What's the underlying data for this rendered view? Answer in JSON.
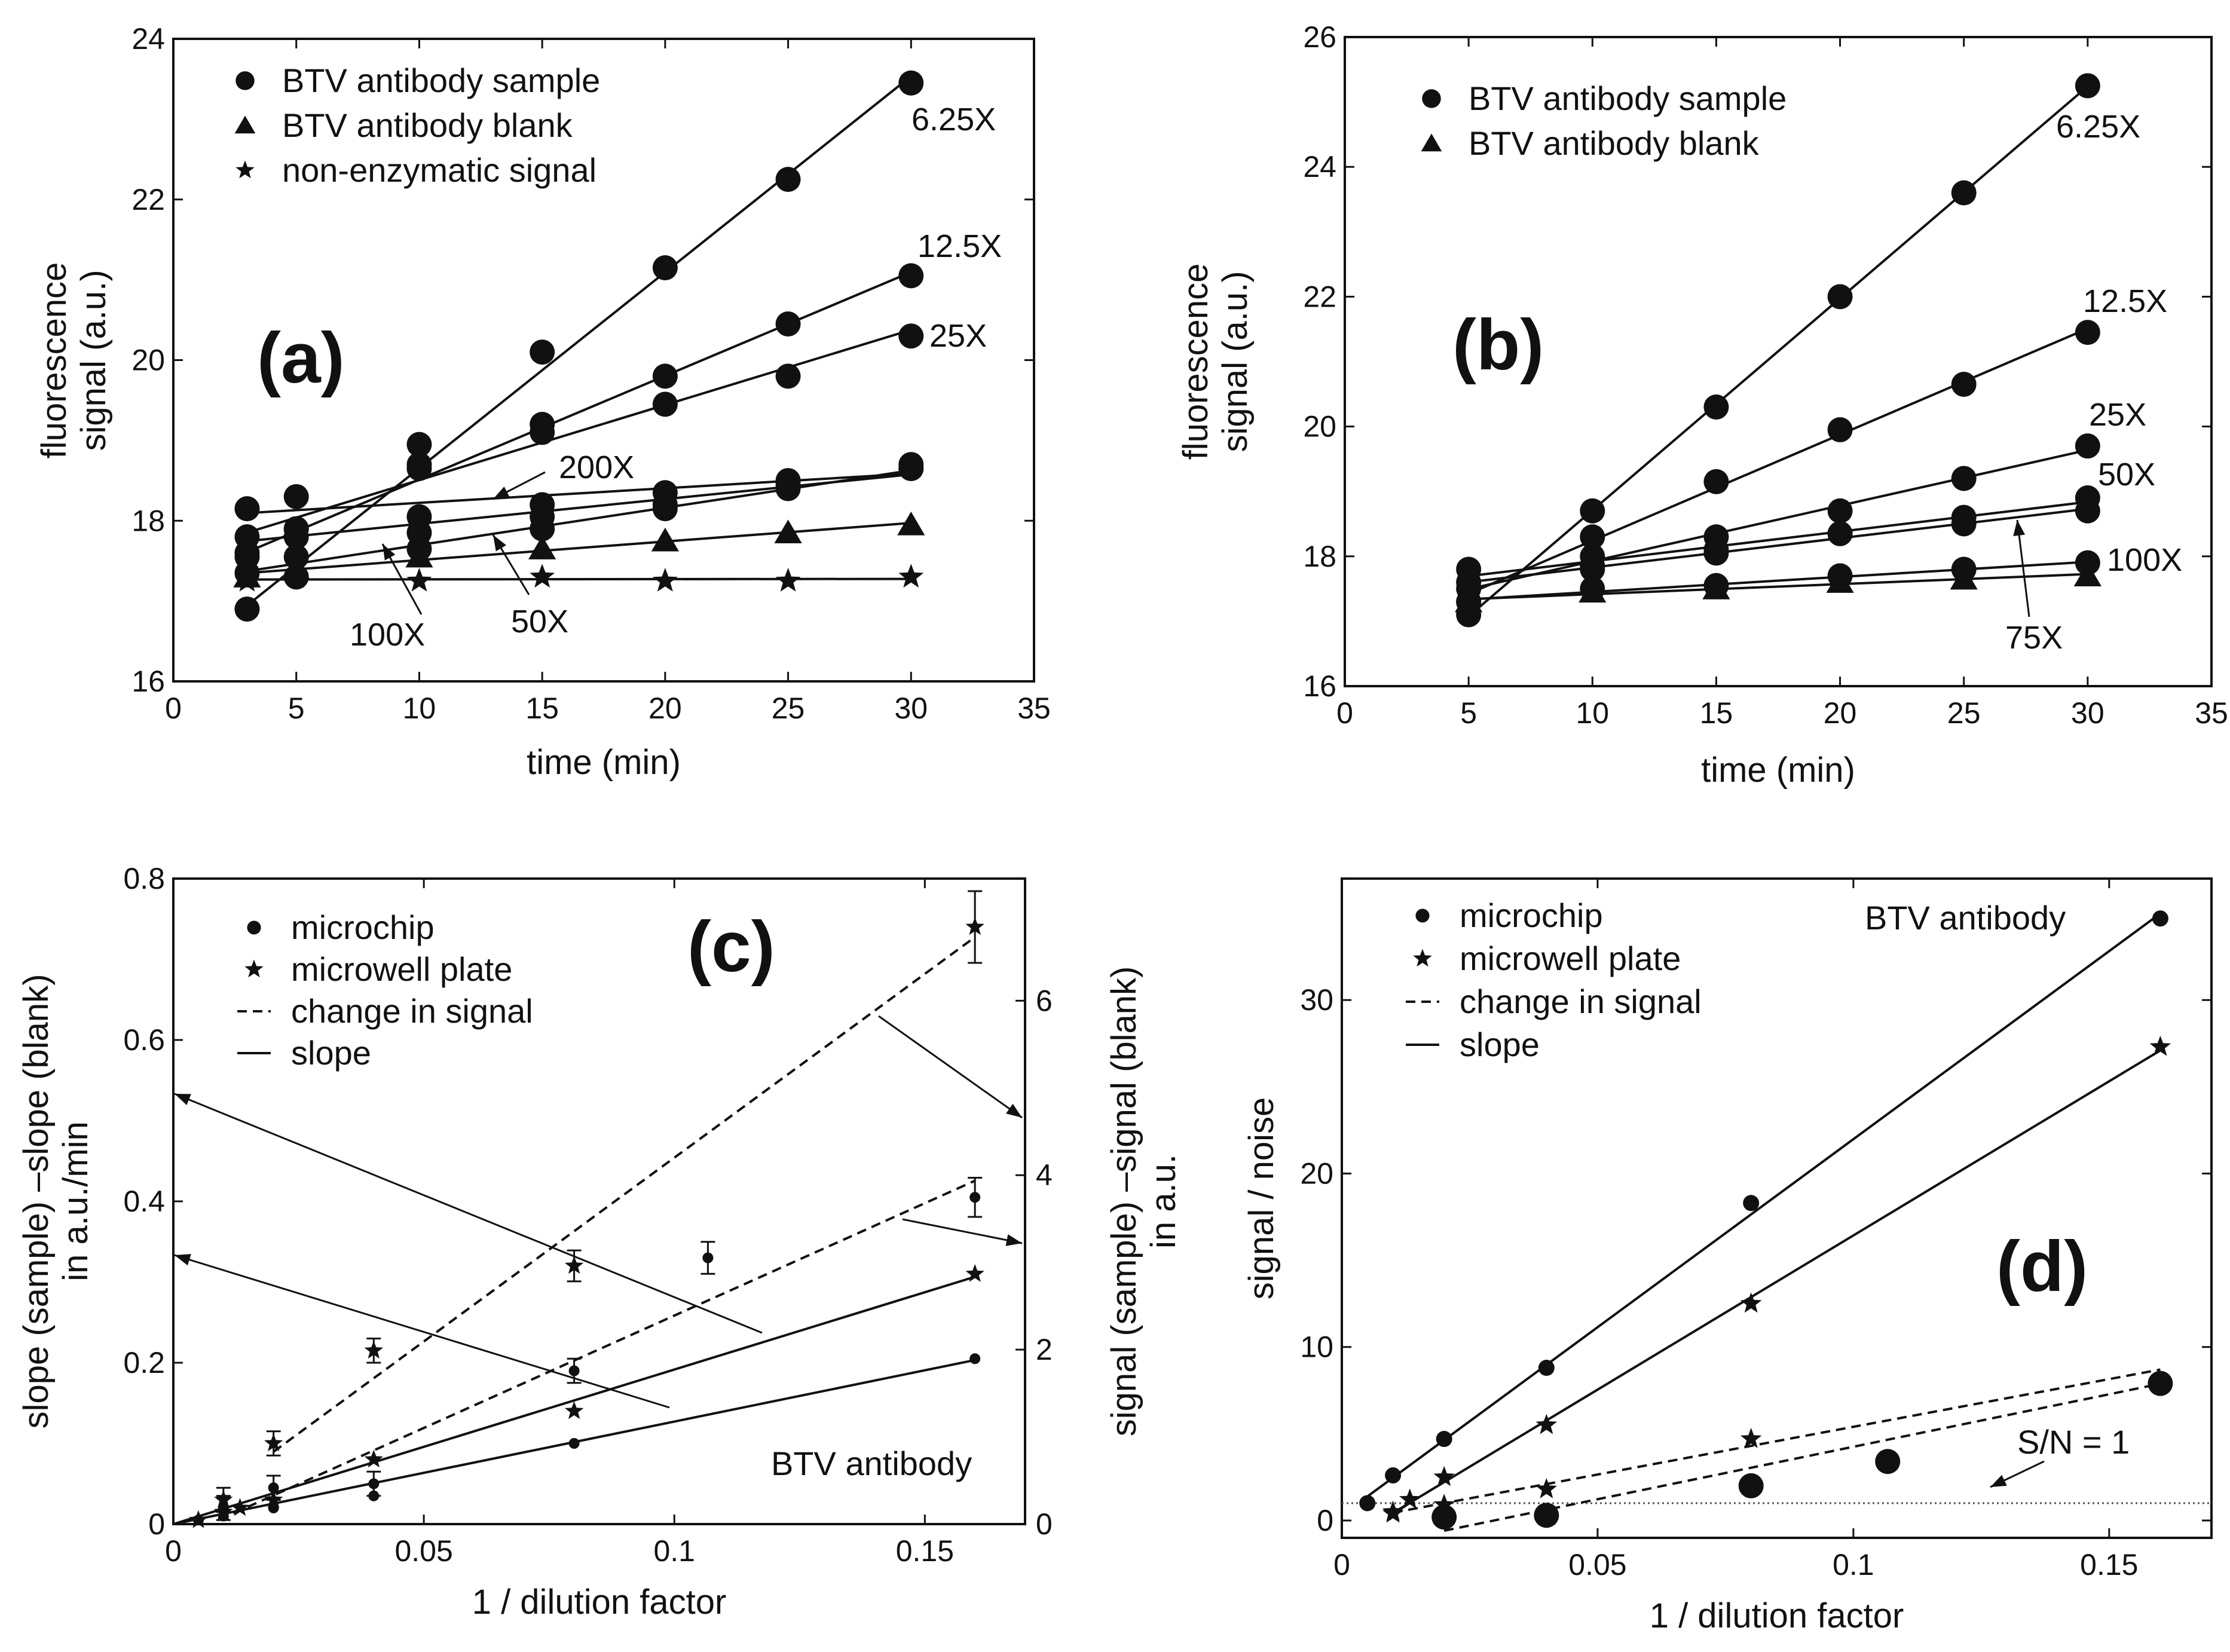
{
  "chart_data": [
    {
      "id": "a",
      "type": "scatter",
      "panel_label": "(a)",
      "xlabel": "time (min)",
      "ylabel": "fluorescence signal (a.u.)",
      "xlim": [
        0,
        35
      ],
      "ylim": [
        16,
        24
      ],
      "xticks": [
        0,
        5,
        10,
        15,
        20,
        25,
        30,
        35
      ],
      "yticks": [
        16,
        18,
        20,
        22,
        24
      ],
      "legend": [
        {
          "marker": "circle",
          "label": "BTV antibody sample"
        },
        {
          "marker": "triangle",
          "label": "BTV antibody blank"
        },
        {
          "marker": "star",
          "label": "non-enzymatic signal"
        }
      ],
      "series": [
        {
          "name": "6.25X",
          "marker": "circle",
          "x": [
            3,
            5,
            10,
            15,
            20,
            25,
            30
          ],
          "y": [
            16.9,
            17.3,
            18.7,
            20.1,
            21.15,
            22.25,
            23.45
          ]
        },
        {
          "name": "12.5X",
          "marker": "circle",
          "x": [
            3,
            5,
            10,
            15,
            20,
            25,
            30
          ],
          "y": [
            17.55,
            17.8,
            18.65,
            19.2,
            19.8,
            20.45,
            21.05
          ]
        },
        {
          "name": "25X",
          "marker": "circle",
          "x": [
            3,
            5,
            10,
            15,
            20,
            25,
            30
          ],
          "y": [
            17.6,
            17.9,
            18.95,
            19.1,
            19.45,
            19.8,
            20.3
          ]
        },
        {
          "name": "200X",
          "marker": "circle",
          "x": [
            3,
            5,
            10,
            15,
            20,
            25,
            30
          ],
          "y": [
            18.15,
            18.3,
            18.05,
            18.2,
            18.35,
            18.5,
            18.7
          ]
        },
        {
          "name": "100X",
          "marker": "circle",
          "x": [
            3,
            5,
            10,
            15,
            20,
            25,
            30
          ],
          "y": [
            17.8,
            17.9,
            17.85,
            18.05,
            18.2,
            18.45,
            18.65
          ]
        },
        {
          "name": "50X",
          "marker": "circle",
          "x": [
            3,
            5,
            10,
            15,
            20,
            25,
            30
          ],
          "y": [
            17.35,
            17.55,
            17.65,
            17.9,
            18.15,
            18.4,
            18.65
          ]
        },
        {
          "name": "blank",
          "marker": "triangle",
          "x": [
            3,
            5,
            10,
            15,
            20,
            25,
            30
          ],
          "y": [
            17.3,
            17.4,
            17.55,
            17.65,
            17.75,
            17.85,
            17.95
          ]
        },
        {
          "name": "non-enzymatic",
          "marker": "star",
          "x": [
            3,
            5,
            10,
            15,
            20,
            25,
            30
          ],
          "y": [
            17.25,
            17.3,
            17.25,
            17.3,
            17.25,
            17.25,
            17.3
          ]
        }
      ],
      "annotations": [
        "6.25X",
        "12.5X",
        "25X",
        "200X",
        "100X",
        "50X"
      ]
    },
    {
      "id": "b",
      "type": "scatter",
      "panel_label": "(b)",
      "xlabel": "time (min)",
      "ylabel": "fluorescence signal (a.u.)",
      "xlim": [
        0,
        35
      ],
      "ylim": [
        16,
        26
      ],
      "xticks": [
        0,
        5,
        10,
        15,
        20,
        25,
        30,
        35
      ],
      "yticks": [
        16,
        18,
        20,
        22,
        24,
        26
      ],
      "legend": [
        {
          "marker": "circle",
          "label": "BTV antibody sample"
        },
        {
          "marker": "triangle",
          "label": "BTV antibody blank"
        }
      ],
      "series": [
        {
          "name": "6.25X",
          "marker": "circle",
          "x": [
            5,
            10,
            15,
            20,
            25,
            30
          ],
          "y": [
            17.1,
            18.7,
            20.3,
            22.0,
            23.6,
            25.25
          ]
        },
        {
          "name": "12.5X",
          "marker": "circle",
          "x": [
            5,
            10,
            15,
            20,
            25,
            30
          ],
          "y": [
            17.3,
            18.3,
            19.15,
            19.95,
            20.65,
            21.45
          ]
        },
        {
          "name": "25X",
          "marker": "circle",
          "x": [
            5,
            10,
            15,
            20,
            25,
            30
          ],
          "y": [
            17.5,
            18.0,
            18.3,
            18.7,
            19.2,
            19.7
          ]
        },
        {
          "name": "50X",
          "marker": "circle",
          "x": [
            5,
            10,
            15,
            20,
            25,
            30
          ],
          "y": [
            17.8,
            17.85,
            18.1,
            18.35,
            18.6,
            18.9
          ]
        },
        {
          "name": "75X",
          "marker": "circle",
          "x": [
            5,
            10,
            15,
            20,
            25,
            30
          ],
          "y": [
            17.6,
            17.8,
            18.05,
            18.35,
            18.5,
            18.7
          ]
        },
        {
          "name": "100X",
          "marker": "circle",
          "x": [
            5,
            10,
            15,
            20,
            25,
            30
          ],
          "y": [
            17.3,
            17.5,
            17.55,
            17.7,
            17.8,
            17.9
          ]
        },
        {
          "name": "blank",
          "marker": "triangle",
          "x": [
            5,
            10,
            15,
            20,
            25,
            30
          ],
          "y": [
            17.3,
            17.45,
            17.5,
            17.6,
            17.65,
            17.7
          ]
        }
      ],
      "annotations": [
        "6.25X",
        "12.5X",
        "25X",
        "50X",
        "100X",
        "75X"
      ]
    },
    {
      "id": "c",
      "type": "scatter",
      "panel_label": "(c)",
      "xlabel": "1 / dilution factor",
      "ylabel": "slope (sample) –slope (blank) in a.u./min",
      "y2label": "signal (sample) –signal (blank) in a.u.",
      "xlim": [
        0,
        0.17
      ],
      "ylim": [
        0,
        0.8
      ],
      "y2lim": [
        0,
        7.4
      ],
      "xticks": [
        0,
        0.05,
        0.1,
        0.15
      ],
      "yticks": [
        0,
        0.2,
        0.4,
        0.6,
        0.8
      ],
      "y2ticks": [
        0,
        2,
        4,
        6
      ],
      "text": "BTV antibody",
      "legend": [
        {
          "marker": "dot",
          "label": "microchip"
        },
        {
          "marker": "star",
          "label": "microwell plate"
        },
        {
          "marker": "dashed",
          "label": "change in signal"
        },
        {
          "marker": "solid",
          "label": "slope"
        }
      ],
      "series": [
        {
          "name": "microchip slope",
          "marker": "dot",
          "x": [
            0.005,
            0.01,
            0.02,
            0.04,
            0.08,
            0.16
          ],
          "y": [
            0.005,
            0.01,
            0.02,
            0.035,
            0.1,
            0.205
          ]
        },
        {
          "name": "microwell plate slope",
          "marker": "star",
          "x": [
            0.005,
            0.01,
            0.0133,
            0.02,
            0.04,
            0.08,
            0.16
          ],
          "y": [
            0.005,
            0.015,
            0.02,
            0.03,
            0.08,
            0.14,
            0.31
          ]
        },
        {
          "name": "microchip change in signal",
          "marker": "dot",
          "x": [
            0.01,
            0.02,
            0.04,
            0.08,
            0.1067,
            0.16
          ],
          "y": [
            0.02,
            0.045,
            0.05,
            0.19,
            0.33,
            0.405
          ]
        },
        {
          "name": "microwell plate change in signal",
          "marker": "star",
          "x": [
            0.01,
            0.02,
            0.04,
            0.08,
            0.16
          ],
          "y": [
            0.03,
            0.1,
            0.215,
            0.32,
            0.74
          ]
        }
      ]
    },
    {
      "id": "d",
      "type": "scatter",
      "panel_label": "(d)",
      "xlabel": "1 / dilution factor",
      "ylabel": "signal / noise",
      "xlim": [
        0,
        0.17
      ],
      "ylim": [
        -1,
        37
      ],
      "xticks": [
        0,
        0.05,
        0.1,
        0.15
      ],
      "yticks": [
        0,
        10,
        20,
        30
      ],
      "text": "BTV antibody",
      "threshold_label": "S/N = 1",
      "legend": [
        {
          "marker": "dot",
          "label": "microchip"
        },
        {
          "marker": "star",
          "label": "microwell plate"
        },
        {
          "marker": "dashed",
          "label": "change in signal"
        },
        {
          "marker": "solid",
          "label": "slope"
        }
      ],
      "series": [
        {
          "name": "microchip slope",
          "marker": "dot",
          "x": [
            0.005,
            0.01,
            0.02,
            0.04,
            0.08,
            0.16
          ],
          "y": [
            1.0,
            2.6,
            4.7,
            8.8,
            18.3,
            34.7
          ]
        },
        {
          "name": "microwell plate slope",
          "marker": "star",
          "x": [
            0.01,
            0.0133,
            0.02,
            0.04,
            0.08,
            0.16
          ],
          "y": [
            0.4,
            1.2,
            2.5,
            5.5,
            12.5,
            27.3
          ]
        },
        {
          "name": "microchip change in signal",
          "marker": "bigdot",
          "x": [
            0.02,
            0.04,
            0.08,
            0.1067,
            0.16
          ],
          "y": [
            0.2,
            0.3,
            2.0,
            3.4,
            7.9
          ]
        },
        {
          "name": "microwell plate change in signal",
          "marker": "star",
          "x": [
            0.01,
            0.02,
            0.04,
            0.08
          ],
          "y": [
            0.5,
            0.9,
            1.8,
            4.7
          ]
        }
      ]
    }
  ]
}
